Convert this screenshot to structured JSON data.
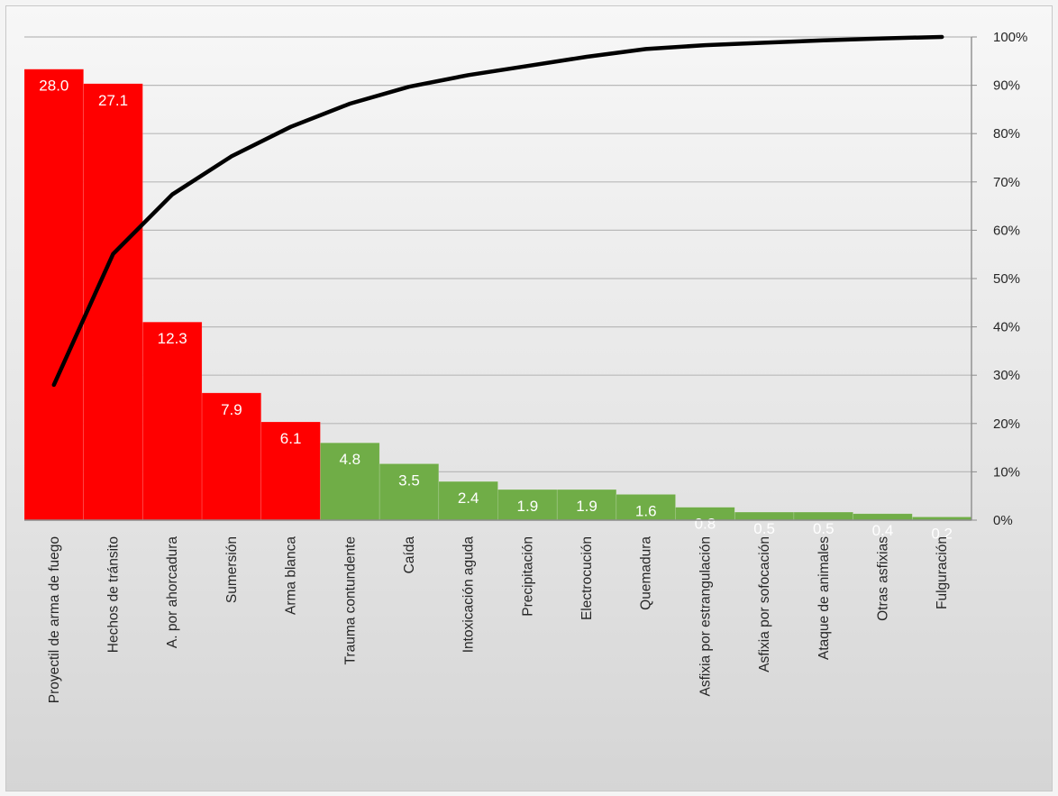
{
  "chart_data": {
    "type": "bar",
    "title": "",
    "xlabel": "",
    "ylabel": "",
    "categories": [
      "Proyectil de arma de fuego",
      "Hechos de tránsito",
      "A. por ahorcadura",
      "Sumersión",
      "Arma blanca",
      "Trauma contundente",
      "Caída",
      "Intoxicación aguda",
      "Precipitación",
      "Electrocución",
      "Quemadura",
      "Asfixia por estrangulación",
      "Asfixia por sofocación",
      "Ataque de animales",
      "Otras asfixias",
      "Fulguración"
    ],
    "values": [
      28.0,
      27.1,
      12.3,
      7.9,
      6.1,
      4.8,
      3.5,
      2.4,
      1.9,
      1.9,
      1.6,
      0.8,
      0.5,
      0.5,
      0.4,
      0.2
    ],
    "data_labels": [
      "28.0",
      "27.1",
      "12.3",
      "7.9",
      "6.1",
      "4.8",
      "3.5",
      "2.4",
      "1.9",
      "1.9",
      "1.6",
      "0.8",
      "0.5",
      "0.5",
      "0.4",
      "0.2"
    ],
    "bar_colors": [
      "#ff0000",
      "#ff0000",
      "#ff0000",
      "#ff0000",
      "#ff0000",
      "#70ad47",
      "#70ad47",
      "#70ad47",
      "#70ad47",
      "#70ad47",
      "#70ad47",
      "#70ad47",
      "#70ad47",
      "#70ad47",
      "#70ad47",
      "#70ad47"
    ],
    "cumulative_series": {
      "type": "line",
      "axis": "right",
      "color": "#000000",
      "values": [
        28.0,
        55.1,
        67.4,
        75.3,
        81.4,
        86.2,
        89.7,
        92.1,
        94.0,
        95.9,
        97.5,
        98.3,
        98.8,
        99.3,
        99.7,
        100.0
      ]
    },
    "ylim": [
      0,
      30
    ],
    "y2lim": [
      0,
      100
    ],
    "y2_ticks": [
      "0%",
      "10%",
      "20%",
      "30%",
      "40%",
      "50%",
      "60%",
      "70%",
      "80%",
      "90%",
      "100%"
    ],
    "grid": true,
    "legend": "none"
  }
}
